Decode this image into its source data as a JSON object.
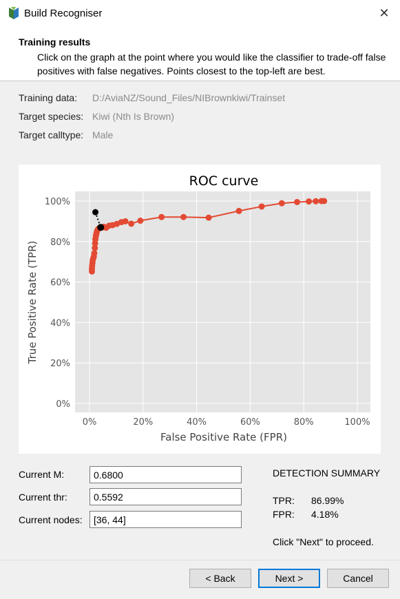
{
  "window": {
    "title": "Build Recogniser"
  },
  "header": {
    "title": "Training results",
    "description": "Click on the graph at the point where you would like the classifier to trade-off false positives with false negatives. Points closest to the top-left are best."
  },
  "info": {
    "training_data_label": "Training data:",
    "training_data_value": "D:/AviaNZ/Sound_Files/NIBrownkiwi/Trainset",
    "target_species_label": "Target species:",
    "target_species_value": "Kiwi (Nth Is Brown)",
    "target_calltype_label": "Target calltype:",
    "target_calltype_value": "Male"
  },
  "chart_data": {
    "type": "scatter",
    "title": "ROC curve",
    "xlabel": "False Positive Rate (FPR)",
    "ylabel": "True Positive Rate (TPR)",
    "xlim": [
      0,
      100
    ],
    "ylim": [
      0,
      100
    ],
    "xticks": [
      "0%",
      "20%",
      "40%",
      "60%",
      "80%",
      "100%"
    ],
    "yticks": [
      "0%",
      "20%",
      "40%",
      "60%",
      "80%",
      "100%"
    ],
    "grid": true,
    "series": [
      {
        "color": "#e34a33",
        "fpr": [
          0.9,
          0.9,
          1.0,
          1.1,
          1.2,
          1.4,
          1.6,
          1.8,
          2.0,
          2.1,
          2.2,
          2.4,
          2.6,
          2.8,
          3.1,
          3.5,
          4.0,
          4.6,
          5.3,
          6.2,
          7.3,
          8.6,
          10.2,
          11.9,
          13.4,
          15.6,
          19.0,
          26.9,
          35.1,
          44.5,
          55.8,
          64.3,
          71.8,
          77.5,
          81.9,
          84.5,
          86.6,
          87.6
        ],
        "tpr": [
          65.2,
          66.6,
          68.1,
          69.5,
          70.8,
          71.6,
          72.5,
          74.2,
          76.8,
          79.1,
          81.1,
          82.8,
          84.1,
          85.1,
          85.9,
          86.5,
          86.99,
          86.9,
          87.3,
          86.8,
          87.8,
          88.1,
          88.7,
          89.6,
          90.0,
          88.8,
          90.3,
          92.1,
          92.1,
          91.8,
          95.1,
          97.3,
          98.9,
          99.5,
          99.8,
          99.9,
          100.0,
          100.0
        ]
      }
    ],
    "current_marker": {
      "fpr": 4.18,
      "tpr": 86.99,
      "color": "#000000"
    },
    "best_marker": {
      "fpr": 2.2,
      "tpr": 94.5,
      "color": "#000000"
    }
  },
  "fields": {
    "m_label": "Current M:",
    "m_value": "0.6800",
    "thr_label": "Current thr:",
    "thr_value": "0.5592",
    "nodes_label": "Current nodes:",
    "nodes_value": "[36, 44]"
  },
  "summary": {
    "title": "DETECTION SUMMARY",
    "tpr_label": "TPR:",
    "tpr_value": "86.99%",
    "fpr_label": "FPR:",
    "fpr_value": "4.18%",
    "proceed": "Click \"Next\" to proceed."
  },
  "buttons": {
    "back": "< Back",
    "next": "Next >",
    "cancel": "Cancel"
  }
}
